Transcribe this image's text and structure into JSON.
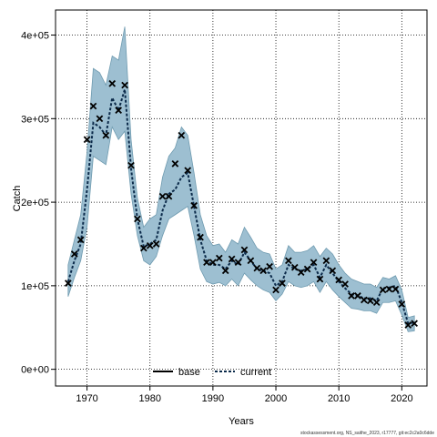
{
  "chart_data": {
    "type": "line",
    "xlabel": "Years",
    "ylabel": "Catch",
    "xlim": [
      1965,
      2024
    ],
    "ylim": [
      -20000,
      430000
    ],
    "x_ticks": [
      1970,
      1980,
      1990,
      2000,
      2010,
      2020
    ],
    "y_ticks": [
      0,
      100000,
      200000,
      300000,
      400000
    ],
    "y_tick_labels": [
      "0e+00",
      "1e+05",
      "2e+05",
      "3e+05",
      "4e+05"
    ],
    "grid": true,
    "legend_position": "bottom",
    "legend": [
      {
        "name": "base",
        "style": "solid",
        "color": "#000000"
      },
      {
        "name": "current",
        "style": "dashed",
        "color": "#1f4e79"
      }
    ],
    "colors": {
      "ribbon": "#9dbfd1",
      "ribbon_edge": "#6f9bb0",
      "current_line": "#0b2a4a",
      "observed": "#000000"
    },
    "footnote": "stockassessment.org, NS_saithe_2023, r17777, git:ec2c2a0c6dde",
    "years": [
      1967,
      1968,
      1969,
      1970,
      1971,
      1972,
      1973,
      1974,
      1975,
      1976,
      1977,
      1978,
      1979,
      1980,
      1981,
      1982,
      1983,
      1984,
      1985,
      1986,
      1987,
      1988,
      1989,
      1990,
      1991,
      1992,
      1993,
      1994,
      1995,
      1996,
      1997,
      1998,
      1999,
      2000,
      2001,
      2002,
      2003,
      2004,
      2005,
      2006,
      2007,
      2008,
      2009,
      2010,
      2011,
      2012,
      2013,
      2014,
      2015,
      2016,
      2017,
      2018,
      2019,
      2020,
      2021,
      2022
    ],
    "series": [
      {
        "name": "current",
        "values": [
          105000,
          130000,
          150000,
          215000,
          295000,
          290000,
          280000,
          325000,
          310000,
          335000,
          240000,
          180000,
          147000,
          150000,
          155000,
          190000,
          210000,
          215000,
          230000,
          235000,
          195000,
          155000,
          130000,
          125000,
          125000,
          120000,
          130000,
          125000,
          140000,
          130000,
          120000,
          118000,
          115000,
          100000,
          105000,
          125000,
          120000,
          118000,
          120000,
          125000,
          110000,
          125000,
          115000,
          105000,
          97000,
          90000,
          88000,
          85000,
          85000,
          82000,
          97000,
          98000,
          100000,
          80000,
          55000,
          56000
        ],
        "lower": [
          87000,
          110000,
          130000,
          170000,
          255000,
          250000,
          245000,
          290000,
          275000,
          285000,
          210000,
          160000,
          130000,
          125000,
          135000,
          160000,
          180000,
          185000,
          190000,
          195000,
          160000,
          120000,
          105000,
          102000,
          104000,
          100000,
          108000,
          100000,
          115000,
          107000,
          100000,
          95000,
          92000,
          82000,
          90000,
          105000,
          100000,
          98000,
          100000,
          105000,
          92000,
          105000,
          95000,
          87000,
          80000,
          73000,
          72000,
          70000,
          70000,
          67000,
          80000,
          80000,
          82000,
          65000,
          45000,
          46000
        ],
        "upper": [
          125000,
          155000,
          185000,
          260000,
          360000,
          355000,
          340000,
          375000,
          370000,
          410000,
          275000,
          205000,
          170000,
          180000,
          185000,
          230000,
          255000,
          265000,
          290000,
          280000,
          235000,
          185000,
          160000,
          148000,
          150000,
          140000,
          155000,
          150000,
          170000,
          158000,
          145000,
          140000,
          138000,
          120000,
          125000,
          148000,
          140000,
          140000,
          142000,
          148000,
          135000,
          145000,
          138000,
          125000,
          115000,
          108000,
          105000,
          102000,
          102000,
          98000,
          110000,
          108000,
          112000,
          95000,
          62000,
          64000
        ]
      }
    ],
    "observed": {
      "name": "observed catch",
      "x": [
        1967,
        1968,
        1969,
        1970,
        1971,
        1972,
        1973,
        1974,
        1975,
        1976,
        1977,
        1978,
        1979,
        1980,
        1981,
        1982,
        1983,
        1984,
        1985,
        1986,
        1987,
        1988,
        1989,
        1990,
        1991,
        1992,
        1993,
        1994,
        1995,
        1996,
        1997,
        1998,
        1999,
        2000,
        2001,
        2002,
        2003,
        2004,
        2005,
        2006,
        2007,
        2008,
        2009,
        2010,
        2011,
        2012,
        2013,
        2014,
        2015,
        2016,
        2017,
        2018,
        2019,
        2020,
        2021,
        2022
      ],
      "y": [
        103000,
        138000,
        155000,
        275000,
        315000,
        300000,
        280000,
        342000,
        310000,
        340000,
        244000,
        180000,
        145000,
        148000,
        150000,
        207000,
        207000,
        246000,
        280000,
        238000,
        196000,
        158000,
        128000,
        128000,
        133000,
        118000,
        132000,
        128000,
        143000,
        130000,
        121000,
        118000,
        123000,
        95000,
        103000,
        130000,
        122000,
        116000,
        120000,
        128000,
        108000,
        130000,
        118000,
        107000,
        102000,
        88000,
        88000,
        83000,
        82000,
        80000,
        95000,
        96000,
        96000,
        78000,
        53000,
        55000
      ]
    }
  }
}
